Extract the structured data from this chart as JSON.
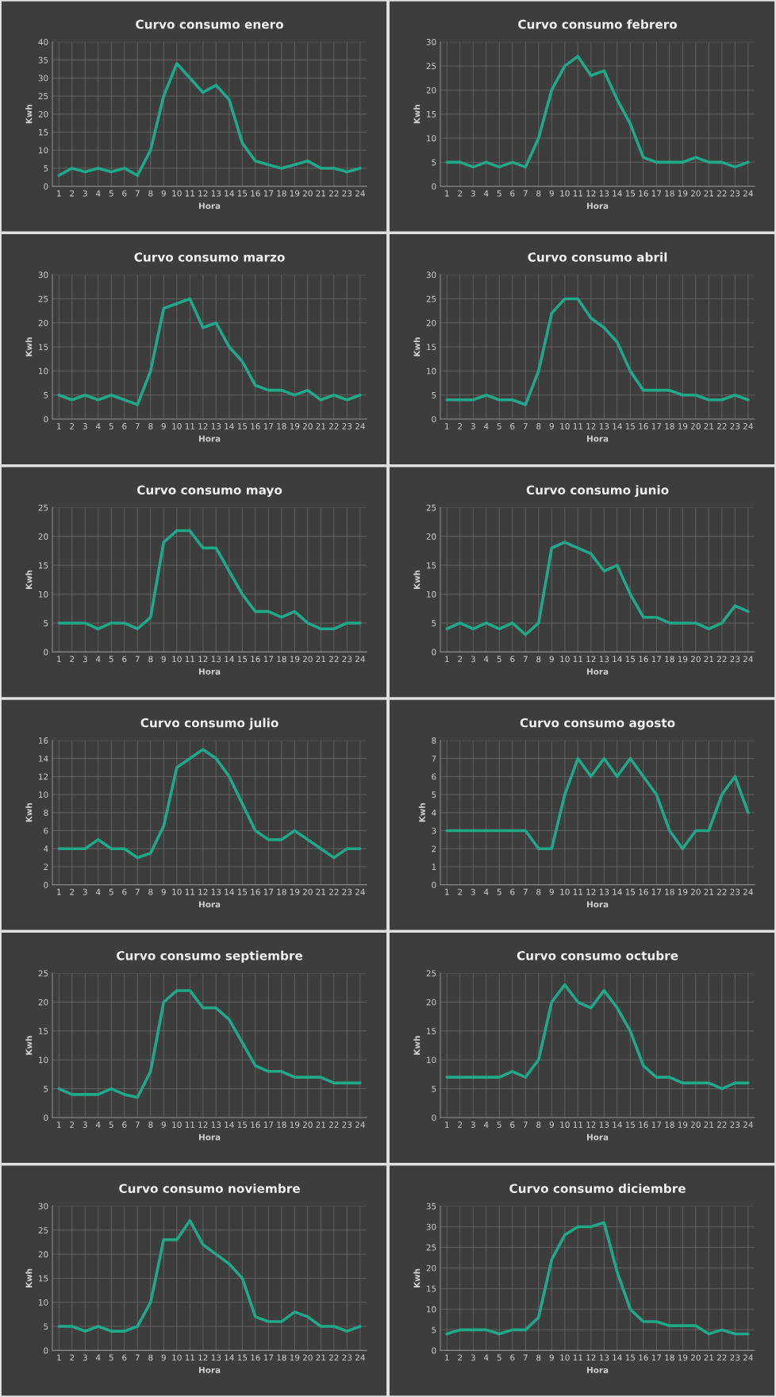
{
  "chart_data": [
    {
      "type": "line",
      "title": "Curvo consumo enero",
      "xlabel": "Hora",
      "ylabel": "Kwh",
      "categories": [
        "1",
        "2",
        "3",
        "4",
        "5",
        "6",
        "7",
        "8",
        "9",
        "10",
        "11",
        "12",
        "13",
        "14",
        "15",
        "16",
        "17",
        "18",
        "19",
        "20",
        "21",
        "22",
        "23",
        "24"
      ],
      "series": [
        {
          "color": "#21a887",
          "values": [
            3,
            5,
            4,
            5,
            4,
            5,
            3,
            10,
            25,
            34,
            30,
            26,
            28,
            24,
            12,
            7,
            6,
            5,
            6,
            7,
            5,
            5,
            4,
            5
          ]
        }
      ],
      "ylim": [
        0,
        40
      ],
      "yticks": [
        0,
        5,
        10,
        15,
        20,
        25,
        30,
        35,
        40
      ],
      "grid": true
    },
    {
      "type": "line",
      "title": "Curvo consumo febrero",
      "xlabel": "Hora",
      "ylabel": "Kwh",
      "categories": [
        "1",
        "2",
        "3",
        "4",
        "5",
        "6",
        "7",
        "8",
        "9",
        "10",
        "11",
        "12",
        "13",
        "14",
        "15",
        "16",
        "17",
        "18",
        "19",
        "20",
        "21",
        "22",
        "23",
        "24"
      ],
      "series": [
        {
          "color": "#21a887",
          "values": [
            5,
            5,
            4,
            5,
            4,
            5,
            4,
            10,
            20,
            25,
            27,
            23,
            24,
            18,
            13,
            6,
            5,
            5,
            5,
            6,
            5,
            5,
            4,
            5
          ]
        }
      ],
      "ylim": [
        0,
        30
      ],
      "yticks": [
        0,
        5,
        10,
        15,
        20,
        25,
        30
      ],
      "grid": true
    },
    {
      "type": "line",
      "title": "Curvo consumo marzo",
      "xlabel": "Hora",
      "ylabel": "Kwh",
      "categories": [
        "1",
        "2",
        "3",
        "4",
        "5",
        "6",
        "7",
        "8",
        "9",
        "10",
        "11",
        "12",
        "13",
        "14",
        "15",
        "16",
        "17",
        "18",
        "19",
        "20",
        "21",
        "22",
        "23",
        "24"
      ],
      "series": [
        {
          "color": "#21a887",
          "values": [
            5,
            4,
            5,
            4,
            5,
            4,
            3,
            10,
            23,
            24,
            25,
            19,
            20,
            15,
            12,
            7,
            6,
            6,
            5,
            6,
            4,
            5,
            4,
            5
          ]
        }
      ],
      "ylim": [
        0,
        30
      ],
      "yticks": [
        0,
        5,
        10,
        15,
        20,
        25,
        30
      ],
      "grid": true
    },
    {
      "type": "line",
      "title": "Curvo consumo abril",
      "xlabel": "Hora",
      "ylabel": "Kwh",
      "categories": [
        "1",
        "2",
        "3",
        "4",
        "5",
        "6",
        "7",
        "8",
        "9",
        "10",
        "11",
        "12",
        "13",
        "14",
        "15",
        "16",
        "17",
        "18",
        "19",
        "20",
        "21",
        "22",
        "23",
        "24"
      ],
      "series": [
        {
          "color": "#21a887",
          "values": [
            4,
            4,
            4,
            5,
            4,
            4,
            3,
            10,
            22,
            25,
            25,
            21,
            19,
            16,
            10,
            6,
            6,
            6,
            5,
            5,
            4,
            4,
            5,
            4
          ]
        }
      ],
      "ylim": [
        0,
        30
      ],
      "yticks": [
        0,
        5,
        10,
        15,
        20,
        25,
        30
      ],
      "grid": true
    },
    {
      "type": "line",
      "title": "Curvo consumo mayo",
      "xlabel": "Hora",
      "ylabel": "Kwh",
      "categories": [
        "1",
        "2",
        "3",
        "4",
        "5",
        "6",
        "7",
        "8",
        "9",
        "10",
        "11",
        "12",
        "13",
        "14",
        "15",
        "16",
        "17",
        "18",
        "19",
        "20",
        "21",
        "22",
        "23",
        "24"
      ],
      "series": [
        {
          "color": "#21a887",
          "values": [
            5,
            5,
            5,
            4,
            5,
            5,
            4,
            6,
            19,
            21,
            21,
            18,
            18,
            14,
            10,
            7,
            7,
            6,
            7,
            5,
            4,
            4,
            5,
            5
          ]
        }
      ],
      "ylim": [
        0,
        25
      ],
      "yticks": [
        0,
        5,
        10,
        15,
        20,
        25
      ],
      "grid": true
    },
    {
      "type": "line",
      "title": "Curvo consumo junio",
      "xlabel": "Hora",
      "ylabel": "Kwh",
      "categories": [
        "1",
        "2",
        "3",
        "4",
        "5",
        "6",
        "7",
        "8",
        "9",
        "10",
        "11",
        "12",
        "13",
        "14",
        "15",
        "16",
        "17",
        "18",
        "19",
        "20",
        "21",
        "22",
        "23",
        "24"
      ],
      "series": [
        {
          "color": "#21a887",
          "values": [
            4,
            5,
            4,
            5,
            4,
            5,
            3,
            5,
            18,
            19,
            18,
            17,
            14,
            15,
            10,
            6,
            6,
            5,
            5,
            5,
            4,
            5,
            8,
            7
          ]
        }
      ],
      "ylim": [
        0,
        25
      ],
      "yticks": [
        0,
        5,
        10,
        15,
        20,
        25
      ],
      "grid": true
    },
    {
      "type": "line",
      "title": "Curvo consumo julio",
      "xlabel": "Hora",
      "ylabel": "Kwh",
      "categories": [
        "1",
        "2",
        "3",
        "4",
        "5",
        "6",
        "7",
        "8",
        "9",
        "10",
        "11",
        "12",
        "13",
        "14",
        "15",
        "16",
        "17",
        "18",
        "19",
        "20",
        "21",
        "22",
        "23",
        "24"
      ],
      "series": [
        {
          "color": "#21a887",
          "values": [
            4,
            4,
            4,
            5,
            4,
            4,
            3,
            3.5,
            6.5,
            13,
            14,
            15,
            14,
            12,
            9,
            6,
            5,
            5,
            6,
            5,
            4,
            3,
            4,
            4
          ]
        }
      ],
      "ylim": [
        0,
        16
      ],
      "yticks": [
        0,
        2,
        4,
        6,
        8,
        10,
        12,
        14,
        16
      ],
      "grid": true
    },
    {
      "type": "line",
      "title": "Curvo consumo agosto",
      "xlabel": "Hora",
      "ylabel": "Kwh",
      "categories": [
        "1",
        "2",
        "3",
        "4",
        "5",
        "6",
        "7",
        "8",
        "9",
        "10",
        "11",
        "12",
        "13",
        "14",
        "15",
        "16",
        "17",
        "18",
        "19",
        "20",
        "21",
        "22",
        "23",
        "24"
      ],
      "series": [
        {
          "color": "#21a887",
          "values": [
            3,
            3,
            3,
            3,
            3,
            3,
            3,
            2,
            2,
            5,
            7,
            6,
            7,
            6,
            7,
            6,
            5,
            3,
            2,
            3,
            3,
            5,
            6,
            4
          ]
        }
      ],
      "ylim": [
        0,
        8
      ],
      "yticks": [
        0,
        1,
        2,
        3,
        4,
        5,
        6,
        7,
        8
      ],
      "grid": true
    },
    {
      "type": "line",
      "title": "Curvo consumo septiembre",
      "xlabel": "Hora",
      "ylabel": "Kwh",
      "categories": [
        "1",
        "2",
        "3",
        "4",
        "5",
        "6",
        "7",
        "8",
        "9",
        "10",
        "11",
        "12",
        "13",
        "14",
        "15",
        "16",
        "17",
        "18",
        "19",
        "20",
        "21",
        "22",
        "23",
        "24"
      ],
      "series": [
        {
          "color": "#21a887",
          "values": [
            5,
            4,
            4,
            4,
            5,
            4,
            3.5,
            8,
            20,
            22,
            22,
            19,
            19,
            17,
            13,
            9,
            8,
            8,
            7,
            7,
            7,
            6,
            6,
            6
          ]
        }
      ],
      "ylim": [
        0,
        25
      ],
      "yticks": [
        0,
        5,
        10,
        15,
        20,
        25
      ],
      "grid": true
    },
    {
      "type": "line",
      "title": "Curvo consumo octubre",
      "xlabel": "Hora",
      "ylabel": "Kwh",
      "categories": [
        "1",
        "2",
        "3",
        "4",
        "5",
        "6",
        "7",
        "8",
        "9",
        "10",
        "11",
        "12",
        "13",
        "14",
        "15",
        "16",
        "17",
        "18",
        "19",
        "20",
        "21",
        "22",
        "23",
        "24"
      ],
      "series": [
        {
          "color": "#21a887",
          "values": [
            7,
            7,
            7,
            7,
            7,
            8,
            7,
            10,
            20,
            23,
            20,
            19,
            22,
            19,
            15,
            9,
            7,
            7,
            6,
            6,
            6,
            5,
            6,
            6
          ]
        }
      ],
      "ylim": [
        0,
        25
      ],
      "yticks": [
        0,
        5,
        10,
        15,
        20,
        25
      ],
      "grid": true
    },
    {
      "type": "line",
      "title": "Curvo consumo noviembre",
      "xlabel": "Hora",
      "ylabel": "Kwh",
      "categories": [
        "1",
        "2",
        "3",
        "4",
        "5",
        "6",
        "7",
        "8",
        "9",
        "10",
        "11",
        "12",
        "13",
        "14",
        "15",
        "16",
        "17",
        "18",
        "19",
        "20",
        "21",
        "22",
        "23",
        "24"
      ],
      "series": [
        {
          "color": "#21a887",
          "values": [
            5,
            5,
            4,
            5,
            4,
            4,
            5,
            10,
            23,
            23,
            27,
            22,
            20,
            18,
            15,
            7,
            6,
            6,
            8,
            7,
            5,
            5,
            4,
            5
          ]
        }
      ],
      "ylim": [
        0,
        30
      ],
      "yticks": [
        0,
        5,
        10,
        15,
        20,
        25,
        30
      ],
      "grid": true
    },
    {
      "type": "line",
      "title": "Curvo consumo diciembre",
      "xlabel": "Hora",
      "ylabel": "Kwh",
      "categories": [
        "1",
        "2",
        "3",
        "4",
        "5",
        "6",
        "7",
        "8",
        "9",
        "10",
        "11",
        "12",
        "13",
        "14",
        "15",
        "16",
        "17",
        "18",
        "19",
        "20",
        "21",
        "22",
        "23",
        "24"
      ],
      "series": [
        {
          "color": "#21a887",
          "values": [
            4,
            5,
            5,
            5,
            4,
            5,
            5,
            8,
            22,
            28,
            30,
            30,
            31,
            19,
            10,
            7,
            7,
            6,
            6,
            6,
            4,
            5,
            4,
            4
          ]
        }
      ],
      "ylim": [
        0,
        35
      ],
      "yticks": [
        0,
        5,
        10,
        15,
        20,
        25,
        30,
        35
      ],
      "grid": true
    }
  ]
}
